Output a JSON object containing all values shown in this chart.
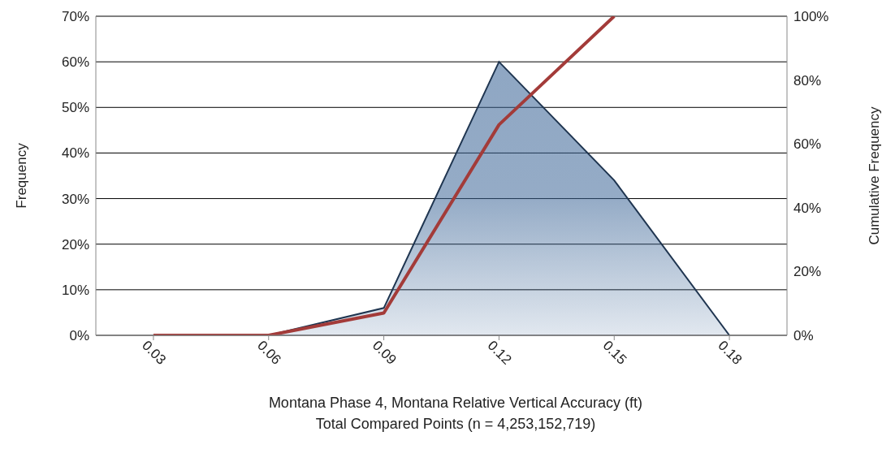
{
  "chart_data": {
    "type": "area",
    "xlabel": "Montana Phase 4, Montana Relative Vertical Accuracy (ft)\nTotal Compared Points (n = 4,253,152,719)",
    "ylabel": "Frequency",
    "y2label": "Cumulative Frequency",
    "categories": [
      "0.03",
      "0.06",
      "0.09",
      "0.12",
      "0.15",
      "0.18"
    ],
    "series": [
      {
        "color": "#3a6496",
        "values": [
          0,
          0,
          6,
          60,
          34,
          0
        ]
      },
      {
        "type": "line",
        "axis": "y2",
        "color": "#a33b39",
        "values": [
          0,
          0,
          7,
          66,
          100,
          null
        ]
      }
    ],
    "ylim": [
      0,
      70
    ],
    "yticks": [
      {
        "value": 0,
        "label": "0%"
      },
      {
        "value": 10,
        "label": "10%"
      },
      {
        "value": 20,
        "label": "20%"
      },
      {
        "value": 30,
        "label": "30%"
      },
      {
        "value": 40,
        "label": "40%"
      },
      {
        "value": 50,
        "label": "50%"
      },
      {
        "value": 60,
        "label": "60%"
      },
      {
        "value": 70,
        "label": "70%"
      }
    ],
    "y2lim": [
      0,
      100
    ],
    "y2ticks": [
      {
        "value": 0,
        "label": "0%"
      },
      {
        "value": 20,
        "label": "20%"
      },
      {
        "value": 40,
        "label": "40%"
      },
      {
        "value": 60,
        "label": "60%"
      },
      {
        "value": 80,
        "label": "80%"
      },
      {
        "value": 100,
        "label": "100%"
      }
    ],
    "grid": "y",
    "marker": "none",
    "line_style": "solid"
  }
}
